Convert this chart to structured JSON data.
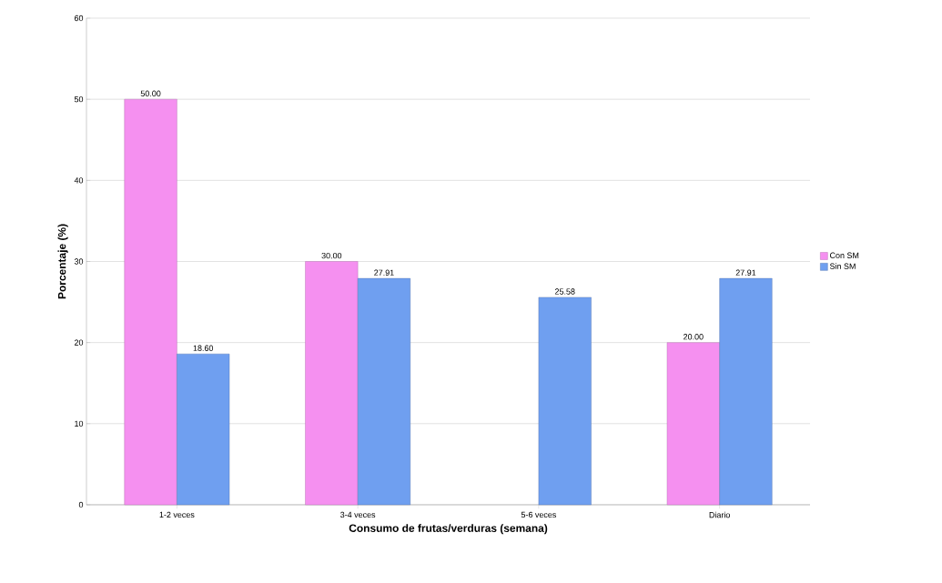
{
  "chart_data": {
    "type": "bar",
    "xlabel": "Consumo de frutas/verduras (semana)",
    "ylabel": "Porcentaje (%)",
    "categories": [
      "1-2 veces",
      "3-4 veces",
      "5-6 veces",
      "Diario"
    ],
    "series": [
      {
        "name": "Con SM",
        "color": "#f590f0",
        "values": [
          50.0,
          30.0,
          null,
          20.0
        ],
        "value_labels": [
          "50.00",
          "30.00",
          null,
          "20.00"
        ]
      },
      {
        "name": "Sin SM",
        "color": "#6f9ff0",
        "values": [
          18.6,
          27.91,
          25.58,
          27.91
        ],
        "value_labels": [
          "18.60",
          "27.91",
          "25.58",
          "27.91"
        ]
      }
    ],
    "ylim": [
      0,
      60
    ],
    "yticks": [
      0,
      10,
      20,
      30,
      40,
      50,
      60
    ],
    "grid": "y",
    "legend": "right"
  }
}
